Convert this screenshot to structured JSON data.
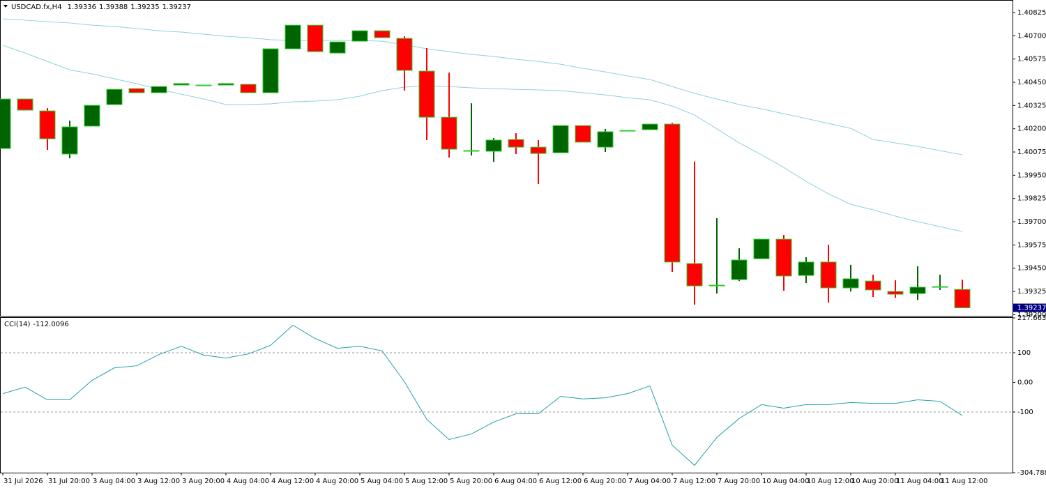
{
  "chart_data": [
    {
      "type": "candlestick",
      "title": "USDCAD.fx,H4",
      "categories": [
        "31 Jul 2026",
        null,
        "31 Jul 20:00",
        null,
        "3 Aug 04:00",
        null,
        "3 Aug 12:00",
        null,
        "3 Aug 20:00",
        null,
        "4 Aug 04:00",
        null,
        "4 Aug 12:00",
        null,
        "4 Aug 20:00",
        null,
        "5 Aug 04:00",
        null,
        "5 Aug 12:00",
        null,
        "5 Aug 20:00",
        null,
        "6 Aug 04:00",
        null,
        "6 Aug 12:00",
        null,
        "6 Aug 20:00",
        null,
        "7 Aug 04:00",
        null,
        "7 Aug 12:00",
        null,
        "7 Aug 20:00",
        null,
        "10 Aug 04:00",
        null,
        "10 Aug 12:00",
        null,
        "10 Aug 20:00",
        null,
        "11 Aug 04:00",
        null,
        "11 Aug 12:00",
        null
      ],
      "open": [
        1.40094,
        1.4036,
        1.40296,
        1.40064,
        1.40214,
        1.4033,
        1.40416,
        1.40394,
        1.40435,
        1.40435,
        1.40435,
        1.40439,
        1.40394,
        1.4063,
        1.40757,
        1.40607,
        1.40671,
        1.40727,
        1.40686,
        1.4051,
        1.40262,
        1.40079,
        1.40079,
        1.40142,
        1.40101,
        1.40071,
        1.40217,
        1.40101,
        1.40191,
        1.40195,
        1.40225,
        1.39475,
        1.39355,
        1.39389,
        1.39501,
        1.39606,
        1.39411,
        1.39483,
        1.39344,
        1.39381,
        1.39325,
        1.39314,
        1.39348,
        1.39336
      ],
      "high": [
        1.4036,
        1.4036,
        1.40311,
        1.40244,
        1.40326,
        1.40412,
        1.40416,
        1.40427,
        1.40443,
        1.40437,
        1.40443,
        1.40439,
        1.4063,
        1.40757,
        1.40757,
        1.40667,
        1.40727,
        1.40727,
        1.40697,
        1.40634,
        1.40502,
        1.40337,
        1.4015,
        1.40176,
        1.40139,
        1.40217,
        1.40217,
        1.40199,
        1.40193,
        1.40225,
        1.40232,
        1.40023,
        1.39719,
        1.39557,
        1.39606,
        1.39629,
        1.39509,
        1.39576,
        1.39468,
        1.39415,
        1.39385,
        1.3946,
        1.39415,
        1.39388
      ],
      "low": [
        1.40094,
        1.403,
        1.40086,
        1.40041,
        1.40214,
        1.4033,
        1.40394,
        1.40394,
        1.40435,
        1.40433,
        1.40435,
        1.40394,
        1.40394,
        1.4063,
        1.40615,
        1.40607,
        1.40671,
        1.4069,
        1.40405,
        1.40139,
        1.40045,
        1.40056,
        1.40022,
        1.40064,
        1.39903,
        1.40071,
        1.40128,
        1.40075,
        1.40189,
        1.40195,
        1.3943,
        1.39254,
        1.39314,
        1.39381,
        1.39501,
        1.39329,
        1.3937,
        1.39265,
        1.39325,
        1.39295,
        1.39291,
        1.3928,
        1.39333,
        1.39235
      ],
      "close": [
        1.4036,
        1.403,
        1.40146,
        1.4021,
        1.40326,
        1.40412,
        1.40394,
        1.40427,
        1.40443,
        1.40435,
        1.40443,
        1.40394,
        1.4063,
        1.40757,
        1.40615,
        1.40667,
        1.40727,
        1.4069,
        1.40514,
        1.40262,
        1.4009,
        1.40083,
        1.40139,
        1.40101,
        1.40067,
        1.40217,
        1.40128,
        1.40184,
        1.40191,
        1.40225,
        1.39483,
        1.39355,
        1.39359,
        1.39494,
        1.39606,
        1.39408,
        1.39483,
        1.39344,
        1.39393,
        1.39333,
        1.3931,
        1.39348,
        1.39351,
        1.39237
      ],
      "up_color": "#006400",
      "down_color": "#ff0000",
      "doji_color": "#32cd32",
      "border_color": "#32cd32",
      "overlays": [
        {
          "color": "#8fd0e0",
          "values": [
            1.40791,
            1.40784,
            1.40776,
            1.40769,
            1.40757,
            1.4075,
            1.40739,
            1.40727,
            1.4072,
            1.40709,
            1.40697,
            1.4069,
            1.40679,
            1.40675,
            1.40675,
            1.40675,
            1.40675,
            1.40671,
            1.40652,
            1.4063,
            1.40615,
            1.406,
            1.40589,
            1.40574,
            1.40562,
            1.40547,
            1.40525,
            1.40506,
            1.40484,
            1.40465,
            1.40427,
            1.4039,
            1.4036,
            1.4033,
            1.40307,
            1.40281,
            1.40255,
            1.40229,
            1.40202,
            1.40142,
            1.40124,
            1.40105,
            1.40082,
            1.4006
          ]
        },
        {
          "color": "#8fd0e0",
          "values": [
            1.40649,
            1.40607,
            1.40562,
            1.40517,
            1.40495,
            1.40469,
            1.40442,
            1.40412,
            1.40386,
            1.4036,
            1.4033,
            1.4033,
            1.40334,
            1.40345,
            1.40349,
            1.40356,
            1.40375,
            1.40405,
            1.40424,
            1.40431,
            1.40427,
            1.4042,
            1.40416,
            1.40412,
            1.40409,
            1.40405,
            1.40394,
            1.40382,
            1.40367,
            1.40356,
            1.40322,
            1.40274,
            1.40199,
            1.40124,
            1.4006,
            1.39992,
            1.39917,
            1.3985,
            1.39794,
            1.39764,
            1.3973,
            1.397,
            1.39674,
            1.39647
          ]
        }
      ],
      "ylim": [
        1.39194,
        1.40885
      ],
      "yticks": [
        1.40825,
        {
          "value": 1.407,
          "label": "1.40700"
        },
        1.40575,
        {
          "value": 1.4045,
          "label": "1.40450"
        },
        1.40325,
        {
          "value": 1.402,
          "label": "1.40200"
        },
        1.40075,
        {
          "value": 1.3995,
          "label": "1.39950"
        },
        1.39825,
        {
          "value": 1.397,
          "label": "1.39700"
        },
        1.39575,
        {
          "value": 1.3945,
          "label": "1.39450"
        },
        1.39325,
        {
          "value": 1.392,
          "label": "1.39200"
        }
      ],
      "price_label_color": "#000080"
    },
    {
      "type": "line",
      "title": "CCI(14)",
      "color": "#20a0a8",
      "values": [
        -38,
        -16,
        -59,
        -59,
        7,
        49,
        56,
        94,
        122,
        92,
        82,
        96,
        125,
        193,
        148,
        115,
        122,
        106,
        2,
        -125,
        -193,
        -174,
        -134,
        -106,
        -106,
        -47,
        -56,
        -52,
        -38,
        -12,
        -212,
        -280,
        -186,
        -122,
        -75,
        -87,
        -75,
        -75,
        -68,
        -71,
        -71,
        -59,
        -64,
        -112.0096
      ],
      "ylim": [
        -304.7883,
        217.6635
      ],
      "yticks": [
        217.6635,
        100,
        {
          "value": 0,
          "label": "0.00"
        },
        -100,
        -304.7883
      ],
      "levels": [
        100,
        -100
      ]
    }
  ]
}
